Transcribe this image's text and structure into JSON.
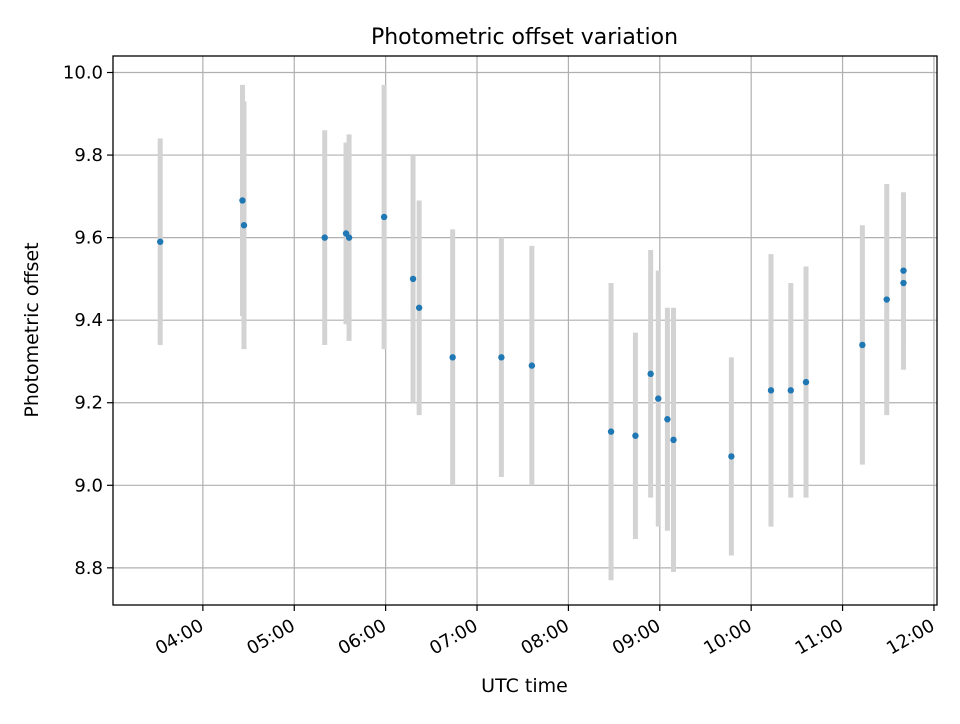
{
  "chart_data": {
    "type": "scatter",
    "title": "Photometric offset variation",
    "xlabel": "UTC time",
    "ylabel": "Photometric offset",
    "x_ticks": [
      "04:00",
      "05:00",
      "06:00",
      "07:00",
      "08:00",
      "09:00",
      "10:00",
      "11:00",
      "12:00"
    ],
    "y_ticks": [
      "8.8",
      "9.0",
      "9.2",
      "9.4",
      "9.6",
      "9.8",
      "10.0"
    ],
    "xlim": [
      "03:01",
      "12:02"
    ],
    "ylim": [
      8.71,
      10.04
    ],
    "grid": true,
    "marker_color": "#1f77b4",
    "errorbar_color": "#d3d3d3",
    "series": [
      {
        "points": [
          {
            "x": "03:32",
            "y": 9.59,
            "err": 0.25
          },
          {
            "x": "04:26",
            "y": 9.69,
            "err": 0.28
          },
          {
            "x": "04:27",
            "y": 9.63,
            "err": 0.3
          },
          {
            "x": "05:20",
            "y": 9.6,
            "err": 0.26
          },
          {
            "x": "05:34",
            "y": 9.61,
            "err": 0.22
          },
          {
            "x": "05:36",
            "y": 9.6,
            "err": 0.25
          },
          {
            "x": "05:59",
            "y": 9.65,
            "err": 0.32
          },
          {
            "x": "06:18",
            "y": 9.5,
            "err": 0.3
          },
          {
            "x": "06:22",
            "y": 9.43,
            "err": 0.26
          },
          {
            "x": "06:44",
            "y": 9.31,
            "err": 0.31
          },
          {
            "x": "07:16",
            "y": 9.31,
            "err": 0.29
          },
          {
            "x": "07:36",
            "y": 9.29,
            "err": 0.29
          },
          {
            "x": "08:28",
            "y": 9.13,
            "err": 0.36
          },
          {
            "x": "08:44",
            "y": 9.12,
            "err": 0.25
          },
          {
            "x": "08:54",
            "y": 9.27,
            "err": 0.3
          },
          {
            "x": "08:59",
            "y": 9.21,
            "err": 0.31
          },
          {
            "x": "09:05",
            "y": 9.16,
            "err": 0.27
          },
          {
            "x": "09:09",
            "y": 9.11,
            "err": 0.32
          },
          {
            "x": "09:47",
            "y": 9.07,
            "err": 0.24
          },
          {
            "x": "10:13",
            "y": 9.23,
            "err": 0.33
          },
          {
            "x": "10:26",
            "y": 9.23,
            "err": 0.26
          },
          {
            "x": "10:36",
            "y": 9.25,
            "err": 0.28
          },
          {
            "x": "11:13",
            "y": 9.34,
            "err": 0.29
          },
          {
            "x": "11:29",
            "y": 9.45,
            "err": 0.28
          },
          {
            "x": "11:40",
            "y": 9.52,
            "err": 0.19
          },
          {
            "x": "11:40",
            "y": 9.49,
            "err": 0.21
          }
        ]
      }
    ]
  }
}
